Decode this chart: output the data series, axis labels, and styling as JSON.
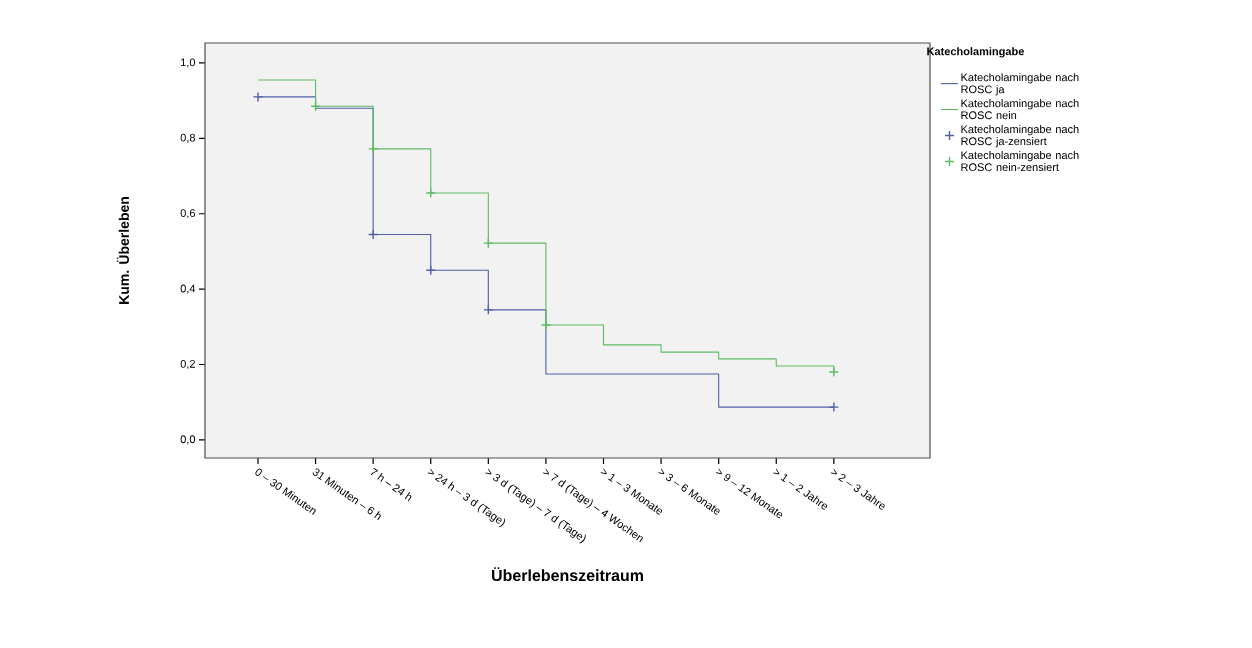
{
  "chart_data": {
    "type": "step",
    "xlabel": "Überlebenszeitraum",
    "ylabel": "Kum. Überleben",
    "legend_title": "Katecholamingabe",
    "categories": [
      "0 – 30 Minuten",
      "31 Minuten – 6 h",
      "7 h – 24 h",
      "> 24 h – 3 d (Tage)",
      "> 3 d (Tage) – 7 d (Tage)",
      "> 7 d (Tage) – 4 Wochen",
      "> 1 – 3 Monate",
      "> 3 – 6 Monate",
      "> 9 – 12 Monate",
      "> 1 – 2 Jahre",
      "> 2 – 3 Jahre"
    ],
    "series": [
      {
        "name": "Katecholamingabe nach ROSC ja",
        "color": "#4f5fa3",
        "values": [
          0.91,
          0.88,
          0.545,
          0.45,
          0.345,
          0.175,
          0.175,
          0.175,
          0.087,
          0.087,
          0.087
        ]
      },
      {
        "name": "Katecholamingabe nach ROSC nein",
        "color": "#5dbb63",
        "values": [
          0.955,
          0.885,
          0.772,
          0.655,
          0.522,
          0.305,
          0.252,
          0.233,
          0.215,
          0.196,
          0.18
        ]
      },
      {
        "name": "Katecholamingabe nach ROSC ja-zensiert",
        "type": "scatter",
        "marker": "cross",
        "color": "#4f5fa3",
        "values": [
          0.91,
          null,
          0.545,
          0.45,
          0.345,
          null,
          null,
          null,
          null,
          null,
          0.087
        ]
      },
      {
        "name": "Katecholamingabe nach ROSC nein-zensiert",
        "type": "scatter",
        "marker": "cross",
        "color": "#5dbb63",
        "values": [
          null,
          0.885,
          0.772,
          0.655,
          0.522,
          0.305,
          null,
          null,
          null,
          null,
          0.18
        ]
      }
    ],
    "ylim": [
      -0.048,
      1.053
    ],
    "yticks": [
      {
        "value": 0,
        "label": "0,0"
      },
      {
        "value": 0.2,
        "label": "0,2"
      },
      {
        "value": 0.4,
        "label": "0,4"
      },
      {
        "value": 0.6,
        "label": "0,6"
      },
      {
        "value": 0.8,
        "label": "0,8"
      },
      {
        "value": 1.0,
        "label": "1,0"
      }
    ],
    "grid": false,
    "legend": "right"
  }
}
